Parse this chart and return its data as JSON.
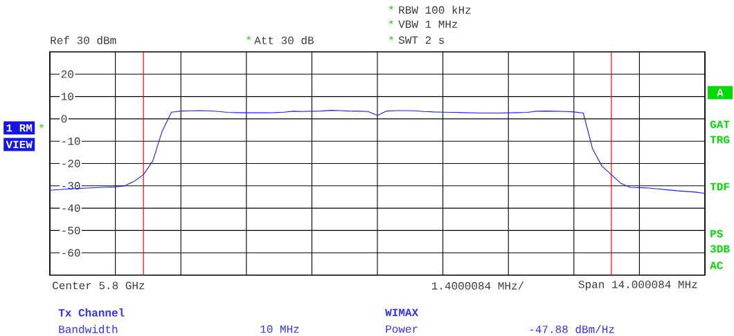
{
  "chart_data": {
    "type": "line",
    "annotations": [
      "*",
      "RBW 100 kHz",
      "*",
      "VBW 1 MHz",
      "*",
      "SWT 2 s",
      "Ref 30 dBm",
      "*",
      "Att 30 dB",
      "Center 5.8 GHz",
      "1.4000084 MHz/",
      "Span 14.000084 MHz",
      "Tx Channel",
      "WIMAX",
      "Bandwidth",
      "10 MHz",
      "Power",
      "-47.88 dBm/Hz",
      "1 RM",
      "*",
      "VIEW",
      "A",
      "GAT",
      "TRG",
      "TDF",
      "PS",
      "3DB",
      "AC"
    ],
    "categories": [
      null,
      null,
      null,
      null,
      null,
      null,
      null,
      null,
      null,
      null,
      null,
      null,
      null,
      null,
      null,
      null,
      null,
      null,
      null,
      null,
      null,
      null,
      null,
      null,
      null,
      null,
      null,
      null,
      null,
      null,
      null,
      null,
      null,
      null,
      null,
      null,
      null,
      null,
      null,
      null,
      null,
      null,
      null,
      null,
      null,
      null,
      null,
      null,
      null,
      null,
      null,
      null,
      null,
      null,
      null,
      null,
      null,
      null,
      null,
      null,
      null,
      null,
      null,
      null,
      null,
      null,
      null,
      null,
      null,
      null,
      null
    ],
    "series": [
      {
        "color": "#1a1aff",
        "values": [
          -32,
          -31.7,
          -31.4,
          -31.2,
          -31.0,
          -30.8,
          -30.6,
          -30.5,
          -30.0,
          -28.0,
          -25,
          -18.9,
          -5.5,
          3.0,
          3.5,
          3.6,
          3.7,
          3.6,
          3.3,
          2.9,
          2.8,
          2.7,
          2.7,
          2.7,
          2.8,
          3.0,
          3.4,
          3.3,
          3.4,
          3.5,
          3.8,
          3.7,
          3.5,
          3.4,
          3.3,
          1.5,
          3.5,
          3.7,
          3.7,
          3.6,
          3.3,
          3.1,
          3.0,
          2.9,
          2.8,
          2.7,
          2.6,
          2.6,
          2.6,
          2.7,
          2.8,
          2.9,
          3.4,
          3.5,
          3.4,
          3.3,
          3.1,
          2.6,
          -13.5,
          -21.2,
          -25,
          -28.8,
          -30.7,
          -30.8,
          -31.0,
          -31.4,
          -31.8,
          -32.2,
          -32.5,
          -32.8,
          -33.4
        ]
      }
    ],
    "ylim": [
      -70,
      30
    ],
    "yticks": [
      -60,
      -50,
      -40,
      -30,
      -20,
      -10,
      0,
      10,
      20
    ],
    "grid": true,
    "tick_labels": "y"
  }
}
